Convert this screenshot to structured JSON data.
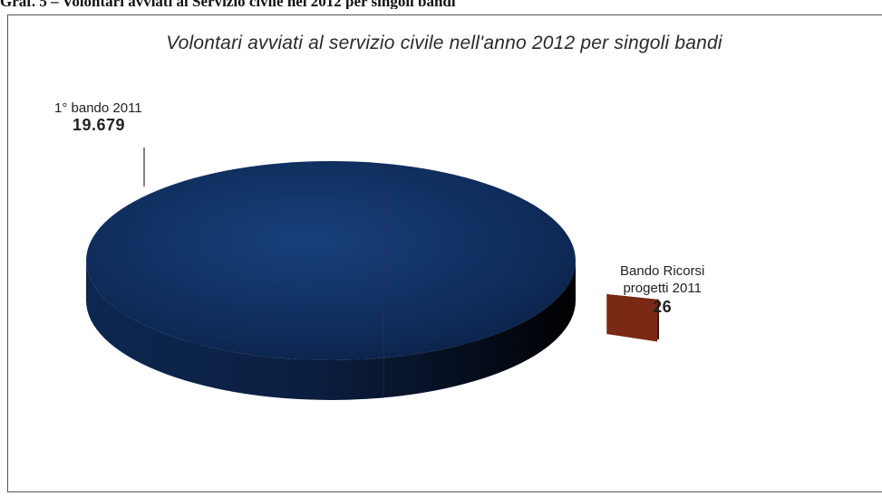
{
  "caption": "Graf. 5 – Volontari avviati al Servizio civile nel 2012 per singoli bandi",
  "chart_data": {
    "type": "pie",
    "title": "Volontari avviati al servizio civile nell'anno 2012 per singoli bandi",
    "slices": [
      {
        "label_line1": "1° bando 2011",
        "label_line2": "",
        "value": 19679,
        "value_label": "19.679",
        "color": "#0f2d5c",
        "side_color": "#0a1a33"
      },
      {
        "label_line1": "Bando Ricorsi",
        "label_line2": "progetti 2011",
        "value": 26,
        "value_label": "26",
        "color": "#7a2a14",
        "side_color": "#3d130a"
      }
    ],
    "style": "3d-exploded",
    "legend": "none"
  }
}
